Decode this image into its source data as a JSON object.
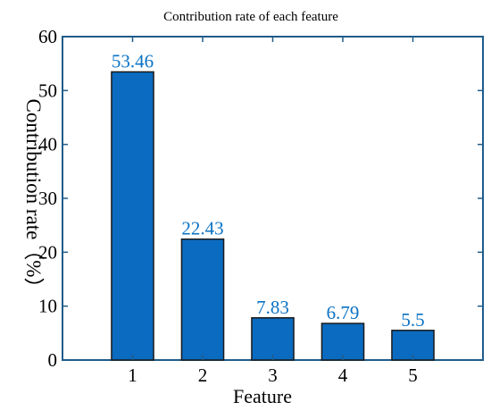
{
  "chart_data": {
    "type": "bar",
    "title": "Contribution rate of each feature",
    "xlabel": "Feature",
    "ylabel": "Contribution rate（%）",
    "categories": [
      "1",
      "2",
      "3",
      "4",
      "5"
    ],
    "values": [
      53.46,
      22.43,
      7.83,
      6.79,
      5.5
    ],
    "data_labels": [
      "53.46",
      "22.43",
      "7.83",
      "6.79",
      "5.5"
    ],
    "xlim": [
      0,
      6
    ],
    "ylim": [
      0,
      60
    ],
    "yticks": [
      0,
      10,
      20,
      30,
      40,
      50,
      60
    ],
    "ytick_labels": [
      "0",
      "10",
      "20",
      "30",
      "40",
      "50",
      "60"
    ],
    "grid": false,
    "legend": "none",
    "colors": {
      "bar_fill": "#0A6BC0",
      "bar_edge": "#1A1A1A",
      "data_label": "#0A72C4",
      "axis": "#1F5C8A",
      "text": "#000000"
    }
  }
}
